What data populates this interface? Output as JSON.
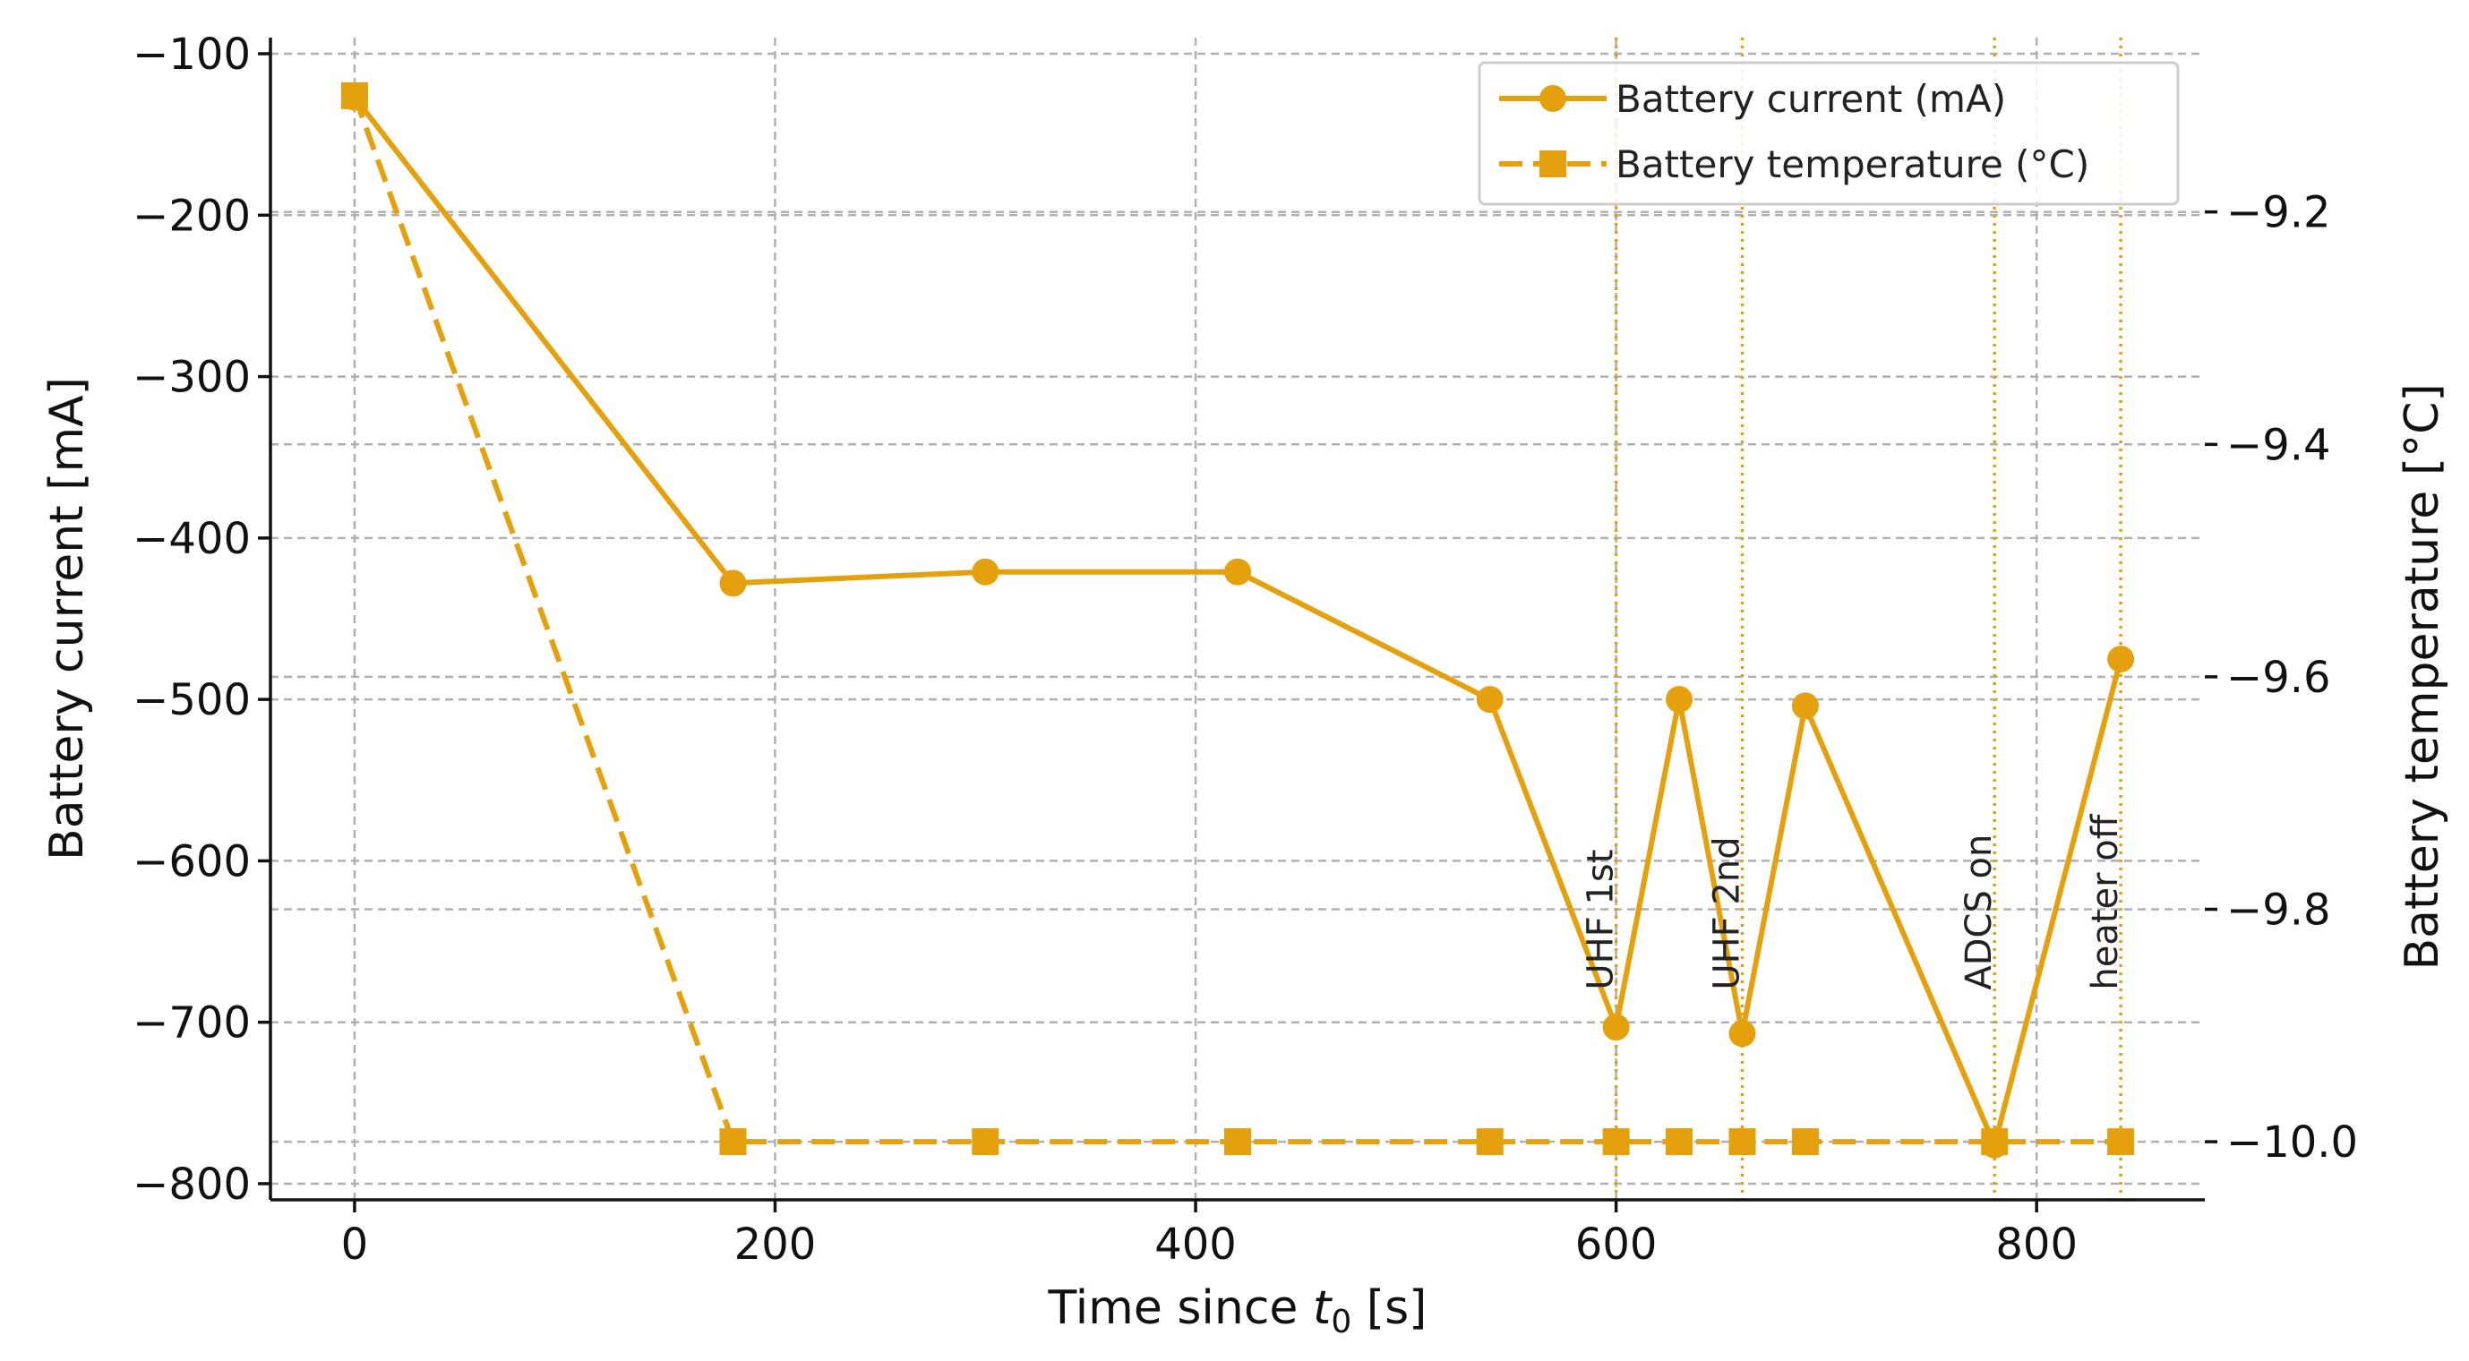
{
  "chart_data": {
    "type": "line",
    "xlabel": {
      "prefix": "Time since ",
      "var": "t",
      "sub": "0",
      "suffix": " [s]"
    },
    "ylabel": "Battery current [mA]",
    "y2label": "Battery temperature [°C]",
    "xlim": [
      -40,
      880
    ],
    "ylim": [
      -810,
      -90
    ],
    "y2lim": [
      -10.05,
      -9.05
    ],
    "xticks": [
      0,
      200,
      400,
      600,
      800
    ],
    "yticks": [
      -800,
      -700,
      -600,
      -500,
      -400,
      -300,
      -200,
      -100
    ],
    "y2ticks": [
      -10.0,
      -9.8,
      -9.6,
      -9.4,
      -9.2
    ],
    "grid": true,
    "legend_position": "top-right",
    "colors": {
      "series": "#E5A00D",
      "grid": "#b0b0b0",
      "axes": "#111111"
    },
    "series": [
      {
        "name": "Battery current (mA)",
        "axis": "left",
        "line_style": "solid",
        "marker": "circle",
        "x": [
          0,
          180,
          300,
          420,
          540,
          600,
          630,
          660,
          690,
          780,
          840
        ],
        "y": [
          -127,
          -428,
          -421,
          -421,
          -500,
          -703,
          -500,
          -707,
          -504,
          -776,
          -475
        ]
      },
      {
        "name": "Battery temperature (°C)",
        "axis": "right",
        "line_style": "dashed",
        "marker": "square",
        "x": [
          0,
          180,
          300,
          420,
          540,
          600,
          630,
          660,
          690,
          780,
          840
        ],
        "y": [
          -9.1,
          -10.0,
          -10.0,
          -10.0,
          -10.0,
          -10.0,
          -10.0,
          -10.0,
          -10.0,
          -10.0,
          -10.0
        ]
      }
    ],
    "annotations": [
      {
        "x": 600,
        "label": "UHF 1st"
      },
      {
        "x": 660,
        "label": "UHF 2nd"
      },
      {
        "x": 780,
        "label": "ADCS on"
      },
      {
        "x": 840,
        "label": "heater off"
      }
    ]
  }
}
